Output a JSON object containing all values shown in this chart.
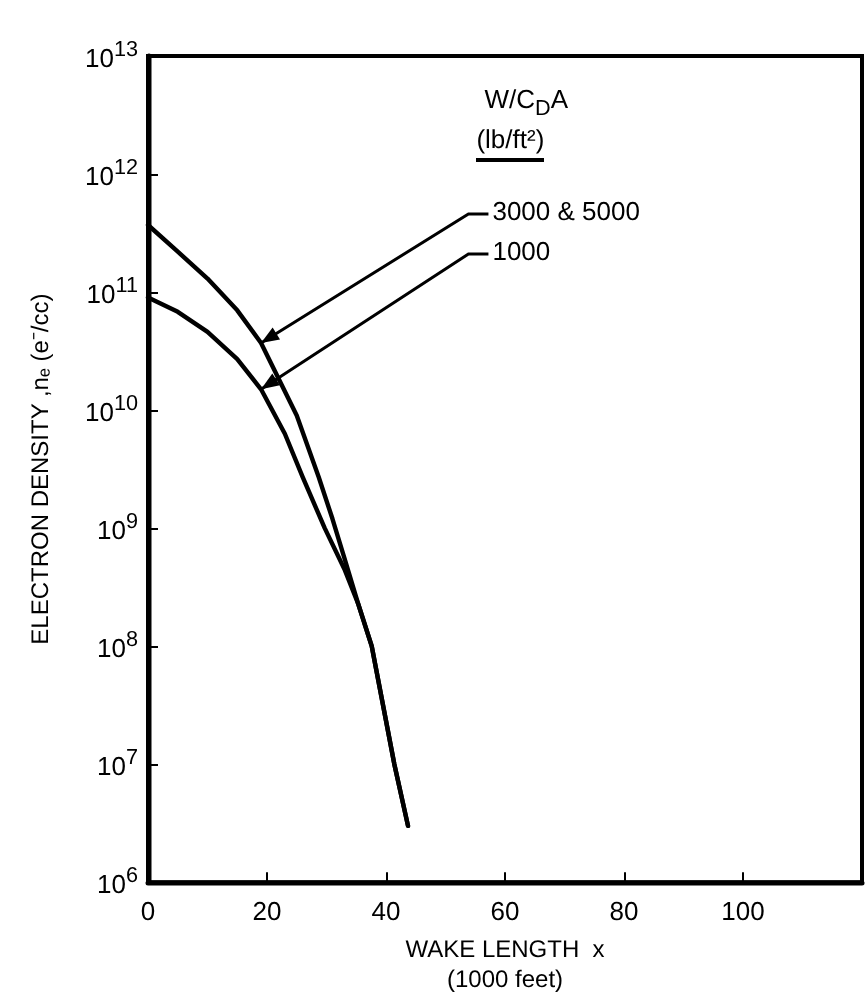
{
  "chart_data": {
    "type": "line",
    "xlabel": "WAKE LENGTH  x\n(1000 feet)",
    "ylabel": "ELECTRON DENSITY ,nₑ (e⁻/cc)",
    "legend_title": "W/C$_{D}$A",
    "annotations": [
      "(lb/ft²)"
    ],
    "series": [
      {
        "name": "3000 & 5000",
        "color": "#000000",
        "x": [
          0,
          5,
          10,
          15,
          19,
          25,
          28.7,
          31,
          33,
          35.3,
          37.6,
          41.4,
          43.7
        ],
        "values": [
          370000000000.0,
          220000000000.0,
          130000000000.0,
          70000000000.0,
          37000000000.0,
          9000000000.0,
          2700000000.0,
          1200000000.0,
          560000000.0,
          230000000.0,
          100000000.0,
          10000000.0,
          3000000.0
        ]
      },
      {
        "name": "1000",
        "color": "#000000",
        "x": [
          0,
          5,
          10,
          15,
          19,
          23,
          26,
          29.7,
          33,
          35.3,
          37.6,
          41.4,
          43.7
        ],
        "values": [
          90000000000.0,
          68000000000.0,
          46000000000.0,
          27000000000.0,
          15000000000.0,
          6300000000.0,
          2700000000.0,
          1000000000.0,
          450000000.0,
          230000000.0,
          100000000.0,
          10000000.0,
          3000000.0
        ]
      }
    ],
    "xlim": [
      0,
      120
    ],
    "xticks": [
      0,
      20,
      40,
      60,
      80,
      100
    ],
    "ylim": [
      1000000.0,
      10000000000000.0
    ],
    "log": "y",
    "yticks": [
      {
        "value": 1000000.0,
        "label": "10$^{6}$"
      },
      {
        "value": 10000000.0,
        "label": "10$^{7}$"
      },
      {
        "value": 100000000.0,
        "label": "10$^{8}$"
      },
      {
        "value": 1000000000.0,
        "label": "10$^{9}$"
      },
      {
        "value": 10000000000.0,
        "label": "10$^{10}$"
      },
      {
        "value": 100000000000.0,
        "label": "10$^{11}$"
      },
      {
        "value": 1000000000000.0,
        "label": "10$^{12}$"
      },
      {
        "value": 10000000000000.0,
        "label": "10$^{13}$"
      }
    ],
    "grid": false,
    "legend": "top right",
    "marker": "none",
    "line_style": "solid"
  }
}
